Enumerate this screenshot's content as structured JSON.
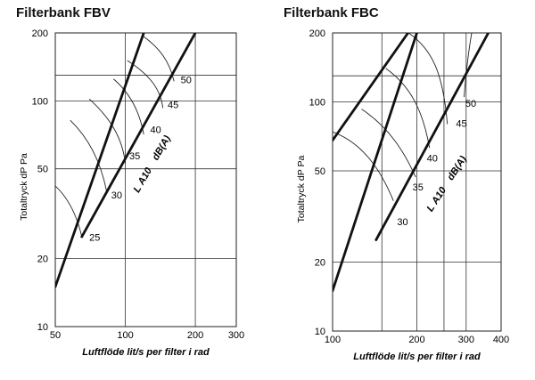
{
  "chart_data": [
    {
      "type": "line",
      "title": "Filterbank FBV",
      "xlabel": "Luftflöde lit/s per filter i rad",
      "ylabel": "Totaltryck dP Pa",
      "x_scale": "log",
      "y_scale": "log",
      "xlim": [
        50,
        300
      ],
      "ylim": [
        10,
        200
      ],
      "x_ticks": [
        50,
        100,
        200,
        300
      ],
      "y_ticks": [
        10,
        20,
        50,
        100,
        200
      ],
      "x_tick_labels": [
        "50",
        "100",
        "200",
        "300"
      ],
      "y_tick_labels": [
        "10",
        "20",
        "50",
        "100",
        "200"
      ],
      "grid_x": [
        50,
        100,
        200
      ],
      "grid_y": [
        20,
        50,
        100,
        130,
        200
      ],
      "boundary_lines": [
        {
          "points": [
            [
              50,
              15
            ],
            [
              120,
              200
            ]
          ]
        },
        {
          "points": [
            [
              65,
              25
            ],
            [
              200,
              200
            ]
          ]
        }
      ],
      "sound_curves": [
        {
          "label": "25",
          "points": [
            [
              50,
              42
            ],
            [
              57,
              37
            ],
            [
              62,
              31
            ],
            [
              65,
              25
            ]
          ]
        },
        {
          "label": "30",
          "points": [
            [
              58,
              82
            ],
            [
              69,
              69
            ],
            [
              78,
              55
            ],
            [
              83,
              40
            ]
          ]
        },
        {
          "label": "35",
          "points": [
            [
              70,
              102
            ],
            [
              86,
              84
            ],
            [
              97,
              69
            ],
            [
              100,
              53
            ]
          ]
        },
        {
          "label": "40",
          "points": [
            [
              89,
              125
            ],
            [
              104,
              109
            ],
            [
              115,
              91
            ],
            [
              120,
              71
            ]
          ]
        },
        {
          "label": "45",
          "points": [
            [
              102,
              151
            ],
            [
              128,
              130
            ],
            [
              142,
              112
            ],
            [
              145,
              93
            ]
          ]
        },
        {
          "label": "50",
          "points": [
            [
              119,
              194
            ],
            [
              140,
              172
            ],
            [
              155,
              150
            ],
            [
              162,
              122
            ]
          ]
        }
      ],
      "curve_label_positions": [
        [
          70,
          24
        ],
        [
          87,
          37
        ],
        [
          104,
          55
        ],
        [
          128,
          72
        ],
        [
          152,
          93
        ],
        [
          173,
          120
        ]
      ],
      "lwa_label": {
        "l": "L",
        "sub": "A10",
        "unit": "dB(A)",
        "x": 114,
        "y": 39
      }
    },
    {
      "type": "line",
      "title": "Filterbank FBC",
      "xlabel": "Luftflöde lit/s per filter i rad",
      "ylabel": "Totaltryck dP Pa",
      "x_scale": "log",
      "y_scale": "log",
      "xlim": [
        100,
        400
      ],
      "ylim": [
        10,
        200
      ],
      "x_ticks": [
        100,
        200,
        300,
        400
      ],
      "y_ticks": [
        10,
        20,
        50,
        100,
        200
      ],
      "x_tick_labels": [
        "100",
        "200",
        "300",
        "400"
      ],
      "y_tick_labels": [
        "10",
        "20",
        "50",
        "100",
        "200"
      ],
      "grid_x": [
        100,
        150,
        200,
        250,
        300
      ],
      "grid_y": [
        20,
        50,
        100,
        130,
        200
      ],
      "boundary_lines": [
        {
          "points": [
            [
              100,
              15
            ],
            [
              200,
              200
            ]
          ]
        },
        {
          "points": [
            [
              100,
              68
            ],
            [
              186,
              200
            ]
          ]
        },
        {
          "points": [
            [
              143,
              25
            ],
            [
              360,
              200
            ]
          ]
        }
      ],
      "sound_curves": [
        {
          "label": "30",
          "points": [
            [
              100,
              74
            ],
            [
              129,
              66
            ],
            [
              149,
              50
            ],
            [
              165,
              37
            ]
          ]
        },
        {
          "label": "35",
          "points": [
            [
              127,
              93
            ],
            [
              160,
              77
            ],
            [
              181,
              60
            ],
            [
              198,
              47
            ]
          ]
        },
        {
          "label": "40",
          "points": [
            [
              155,
              140
            ],
            [
              190,
              117
            ],
            [
              210,
              92
            ],
            [
              222,
              63
            ]
          ]
        },
        {
          "label": "45",
          "points": [
            [
              187,
              200
            ],
            [
              226,
              170
            ],
            [
              248,
              135
            ],
            [
              257,
              80
            ]
          ]
        },
        {
          "label": "50",
          "points": [
            [
              314,
              200
            ],
            [
              302,
              152
            ],
            [
              295,
              105
            ]
          ]
        }
      ],
      "curve_label_positions": [
        [
          170,
          29
        ],
        [
          193,
          41
        ],
        [
          217,
          55
        ],
        [
          276,
          78
        ],
        [
          298,
          95
        ]
      ],
      "lwa_label": {
        "l": "L",
        "sub": "A10",
        "unit": "dB(A)",
        "x": 226,
        "y": 33
      }
    }
  ]
}
